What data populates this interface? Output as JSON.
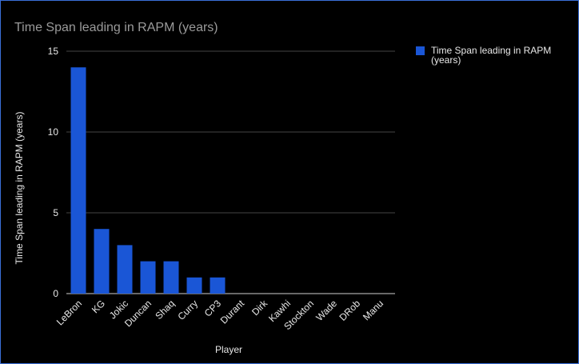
{
  "chart_data": {
    "type": "bar",
    "title": "Time Span leading in RAPM (years)",
    "xlabel": "Player",
    "ylabel": "Time Span leading in RAPM (years)",
    "categories": [
      "LeBron",
      "KG",
      "Jokic",
      "Duncan",
      "Shaq",
      "Curry",
      "CP3",
      "Durant",
      "Dirk",
      "Kawhi",
      "Stockton",
      "Wade",
      "DRob",
      "Manu"
    ],
    "series": [
      {
        "name": "Time Span leading in RAPM (years)",
        "values": [
          14,
          4,
          3,
          2,
          2,
          1,
          1,
          0,
          0,
          0,
          0,
          0,
          0,
          0
        ],
        "color": "#1a56d6"
      }
    ],
    "ylim": [
      0,
      15
    ],
    "yticks": [
      "0",
      "5",
      "10",
      "15"
    ],
    "grid": true,
    "legend": "right",
    "legend_lines": [
      "Time Span leading in RAPM",
      "(years)"
    ]
  }
}
